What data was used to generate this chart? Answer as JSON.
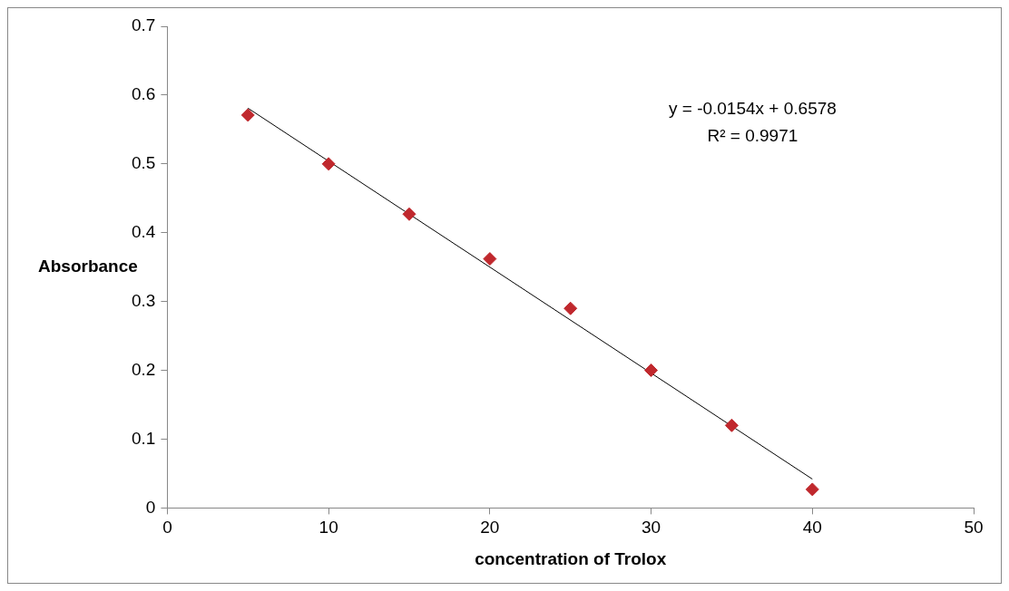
{
  "chart_data": {
    "type": "scatter",
    "xlabel": "concentration of Trolox",
    "ylabel": "Absorbance",
    "annotations": [
      "y = -0.0154x + 0.6578",
      "R² = 0.9971"
    ],
    "x": [
      5,
      10,
      15,
      20,
      25,
      30,
      35,
      40
    ],
    "series": [
      {
        "color": "#c0282d",
        "marker": "diamond",
        "values": [
          0.571,
          0.5,
          0.427,
          0.362,
          0.29,
          0.2,
          0.12,
          0.027
        ]
      },
      {
        "type": "line",
        "color": "#000000",
        "marker": "none",
        "x": [
          5,
          40
        ],
        "values": [
          0.581,
          0.042
        ]
      }
    ],
    "xlim": [
      0,
      50
    ],
    "xticks": [
      0,
      10,
      20,
      30,
      40,
      50
    ],
    "ylim": [
      0,
      0.7
    ],
    "yticks": [
      0,
      0.1,
      0.2,
      0.3,
      0.4,
      0.5,
      0.6,
      0.7
    ],
    "grid": false,
    "legend": false
  }
}
